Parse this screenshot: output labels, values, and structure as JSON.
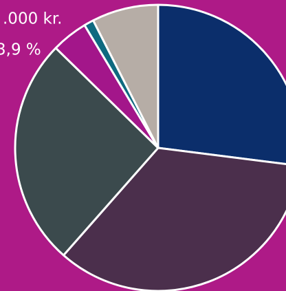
{
  "chart_data": {
    "type": "pie",
    "values": [
      27,
      34.5,
      25.8,
      4.1,
      1.1,
      7.5
    ],
    "colors": [
      "#0b2e6b",
      "#4b2f4c",
      "#3b4a4d",
      "#a3168a",
      "#0e6a80",
      "#b6ada6"
    ],
    "annotations": [
      ".000 kr.",
      "3,9 %"
    ]
  }
}
